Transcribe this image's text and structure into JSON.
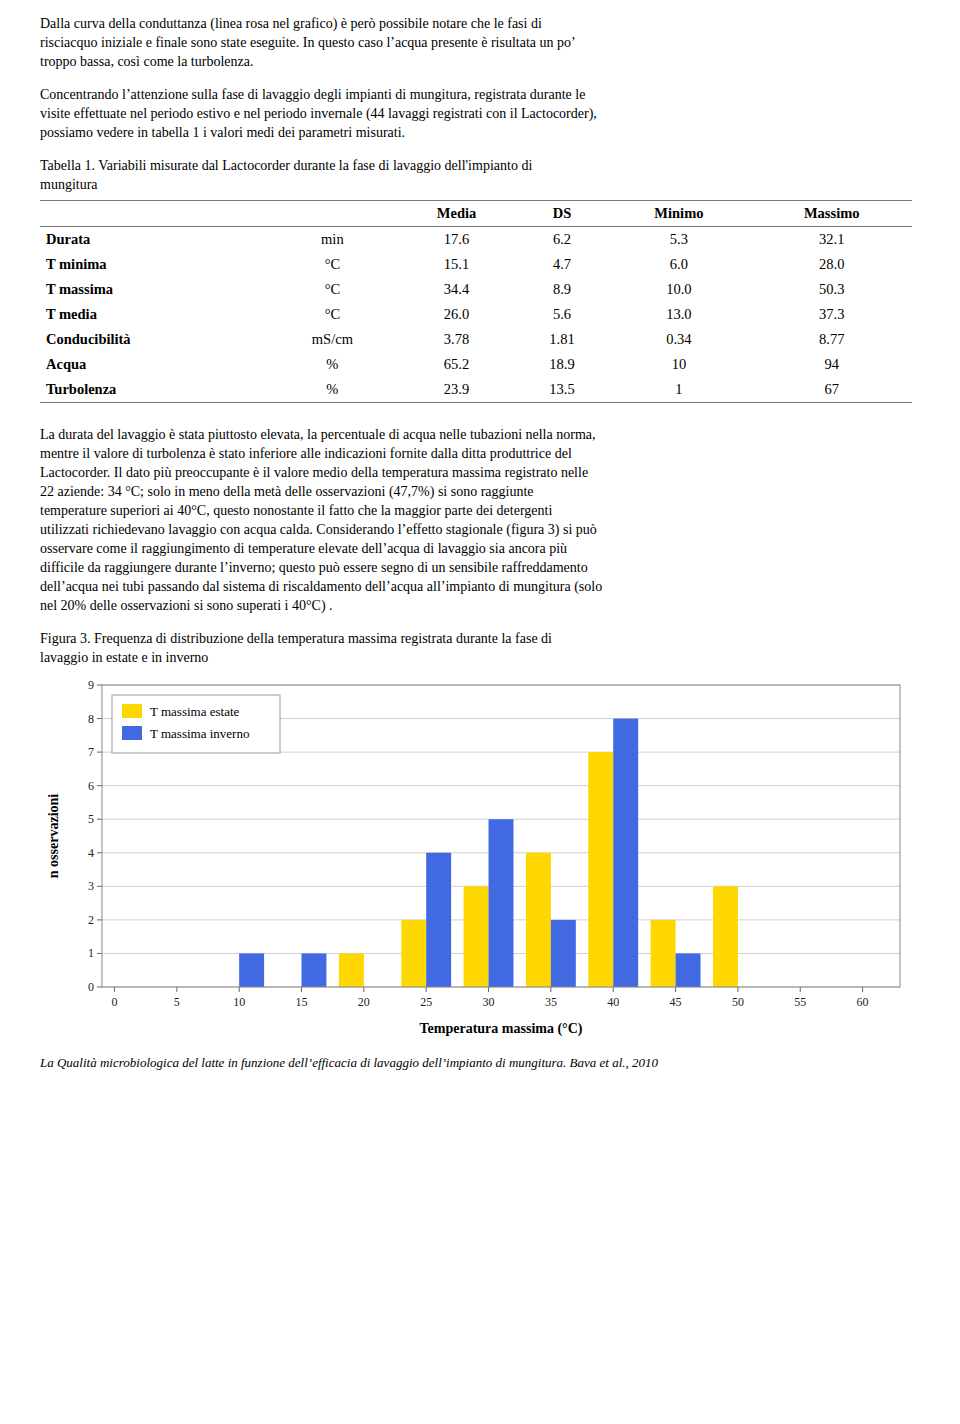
{
  "paragraphs_before": [
    [
      "Dalla curva della conduttanza (linea rosa nel grafico) è però possibile notare che le fasi di",
      "risciacquo iniziale e finale sono state eseguite. In questo caso l’acqua presente è risultata un po’",
      "troppo bassa, così come la turbolenza."
    ],
    [
      "Concentrando l’attenzione sulla fase di lavaggio degli impianti di mungitura, registrata durante le",
      "visite effettuate nel periodo estivo e nel periodo invernale (44 lavaggi registrati con il Lactocorder),",
      "possiamo vedere in tabella 1 i valori medi dei parametri misurati."
    ]
  ],
  "table": {
    "title": [
      "Tabella 1. Variabili misurate dal Lactocorder durante la fase di lavaggio dell'impianto di",
      "mungitura"
    ],
    "headers": [
      "Media",
      "DS",
      "Minimo",
      "Massimo"
    ],
    "rows": [
      [
        "Durata",
        "min",
        "17.6",
        "6.2",
        "5.3",
        "32.1"
      ],
      [
        "T minima",
        "°C",
        "15.1",
        "4.7",
        "6.0",
        "28.0"
      ],
      [
        "T massima",
        "°C",
        "34.4",
        "8.9",
        "10.0",
        "50.3"
      ],
      [
        "T media",
        "°C",
        "26.0",
        "5.6",
        "13.0",
        "37.3"
      ],
      [
        "Conducibilità",
        "mS/cm",
        "3.78",
        "1.81",
        "0.34",
        "8.77"
      ],
      [
        "Acqua",
        "%",
        "65.2",
        "18.9",
        "10",
        "94"
      ],
      [
        "Turbolenza",
        "%",
        "23.9",
        "13.5",
        "1",
        "67"
      ]
    ]
  },
  "paragraph_after": [
    "La durata del lavaggio è stata piuttosto elevata, la percentuale di acqua nelle tubazioni nella norma,",
    "mentre il valore di turbolenza è stato inferiore alle indicazioni fornite dalla ditta produttrice del",
    "Lactocorder. Il dato più preoccupante è il valore medio della temperatura massima registrato nelle",
    "22 aziende: 34 °C; solo in meno della metà delle osservazioni (47,7%) si sono raggiunte",
    "temperature superiori ai 40°C, questo nonostante il fatto che la maggior parte dei detergenti",
    "utilizzati richiedevano lavaggio con acqua calda. Considerando l’effetto stagionale (figura 3) si può",
    "osservare come il raggiungimento di temperature elevate dell’acqua di lavaggio sia ancora più",
    "difficile da raggiungere durante l’inverno; questo può essere segno di un sensibile raffreddamento",
    "dell’acqua nei tubi passando dal sistema di riscaldamento dell’acqua all’impianto di mungitura (solo",
    "nel 20% delle osservazioni si sono superati i 40°C) ."
  ],
  "chart_caption": [
    "Figura 3. Frequenza di distribuzione della temperatura massima registrata durante la fase di",
    "lavaggio in estate e in inverno"
  ],
  "chart_data": {
    "type": "bar",
    "x": [
      10,
      15,
      20,
      25,
      30,
      35,
      40,
      45,
      50
    ],
    "series": [
      {
        "name": "T massima estate",
        "color": "#FFD700",
        "values": [
          0,
          0,
          1,
          2,
          3,
          4,
          7,
          2,
          3
        ]
      },
      {
        "name": "T massima inverno",
        "color": "#4169E1",
        "values": [
          1,
          1,
          0,
          4,
          5,
          2,
          8,
          1,
          0
        ]
      }
    ],
    "xlabel": "Temperatura massima (°C)",
    "ylabel": "n osservazioni",
    "xlim": [
      -1,
      63
    ],
    "xticks": [
      0,
      5,
      10,
      15,
      20,
      25,
      30,
      35,
      40,
      45,
      50,
      55,
      60
    ],
    "ylim": [
      0,
      9
    ],
    "yticks": [
      0,
      1,
      2,
      3,
      4,
      5,
      6,
      7,
      8,
      9
    ],
    "grid": true,
    "legend": "upper left"
  },
  "footer": "La Qualità microbiologica del latte in funzione dell’efficacia di lavaggio dell’impianto di mungitura. Bava et al., 2010"
}
